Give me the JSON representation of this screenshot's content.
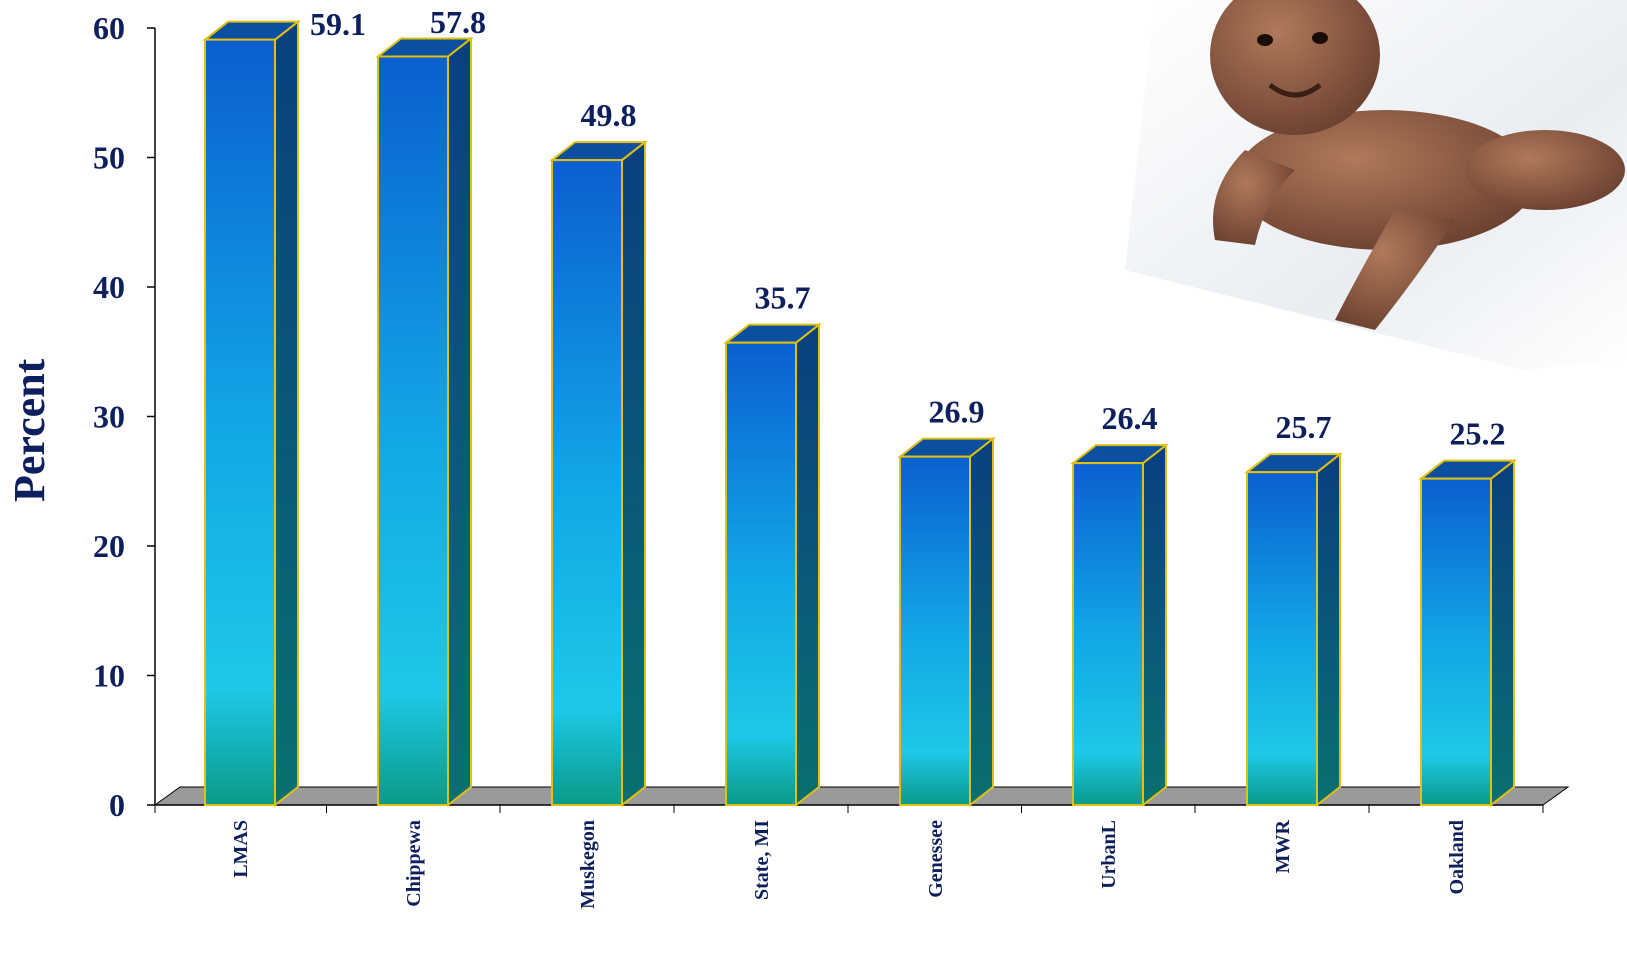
{
  "chart_data": {
    "type": "bar",
    "title": "",
    "xlabel": "",
    "ylabel": "Percent",
    "ylim": [
      0,
      60
    ],
    "yticks": [
      "0",
      "10",
      "20",
      "30",
      "40",
      "50",
      "60"
    ],
    "categories": [
      "LMAS",
      "Chippewa",
      "Muskegon",
      "State, MI",
      "Genessee",
      "UrbanL",
      "MWR",
      "Oakland"
    ],
    "values": [
      59.1,
      57.8,
      49.8,
      35.7,
      26.9,
      26.4,
      25.7,
      25.2
    ],
    "data_labels": [
      "59.1",
      "57.8",
      "49.8",
      "35.7",
      "26.9",
      "26.4",
      "25.7",
      "25.2"
    ],
    "grid": false,
    "legend": "none",
    "style": "3d-bar",
    "colors": {
      "text": "#0d1f5c",
      "bar_top": "#0a5fd0",
      "bar_mid": "#1ec8e6",
      "bar_bottom": "#0a9a88",
      "bar_side": "#0a3f80",
      "bar_outline": "#e0c010",
      "floor": "#9a9a9a"
    }
  },
  "photo": {
    "icon": "baby-photo"
  }
}
